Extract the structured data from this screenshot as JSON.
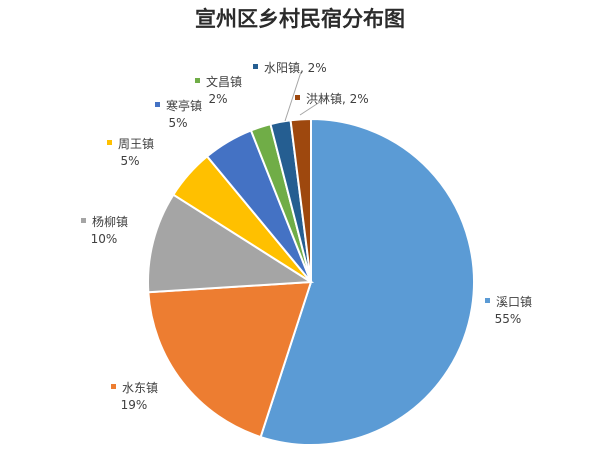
{
  "chart_data": {
    "type": "pie",
    "title": "宣州区乡村民宿分布图",
    "slices": [
      {
        "name": "溪口镇",
        "value": 55,
        "label": "55%",
        "color": "#5b9bd5"
      },
      {
        "name": "水东镇",
        "value": 19,
        "label": "19%",
        "color": "#ed7d31"
      },
      {
        "name": "杨柳镇",
        "value": 10,
        "label": "10%",
        "color": "#a5a5a5"
      },
      {
        "name": "周王镇",
        "value": 5,
        "label": "5%",
        "color": "#ffc000"
      },
      {
        "name": "寒亭镇",
        "value": 5,
        "label": "5%",
        "color": "#4472c4"
      },
      {
        "name": "文昌镇",
        "value": 2,
        "label": "2%",
        "color": "#70ad47"
      },
      {
        "name": "水阳镇",
        "value": 2,
        "label": "2%",
        "color": "#255e91"
      },
      {
        "name": "洪林镇",
        "value": 2,
        "label": "2%",
        "color": "#9e480e"
      }
    ],
    "start_angle": "12 o'clock",
    "direction": "clockwise",
    "legend": "none"
  }
}
